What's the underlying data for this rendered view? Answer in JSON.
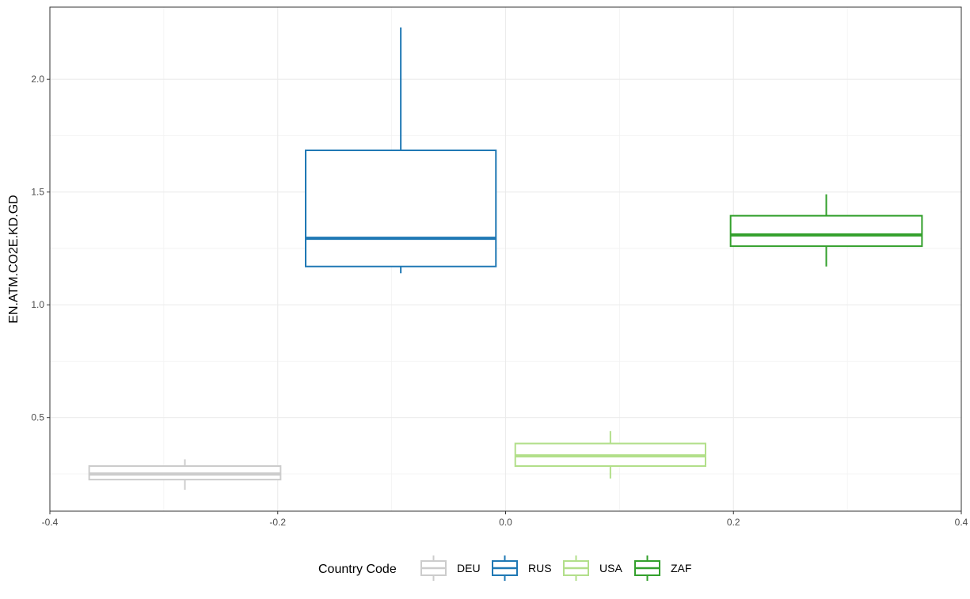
{
  "chart_data": {
    "type": "boxplot",
    "title": "",
    "xlabel": "",
    "ylabel": "EN.ATM.CO2E.KD.GD",
    "xlim": [
      -0.4,
      0.4
    ],
    "ylim": [
      0.085,
      2.32
    ],
    "x_ticks": [
      -0.4,
      -0.2,
      0.0,
      0.2,
      0.4
    ],
    "x_tick_labels": [
      "-0.4",
      "-0.2",
      "0.0",
      "0.2",
      "0.4"
    ],
    "y_ticks": [
      0.5,
      1.0,
      1.5,
      2.0
    ],
    "y_tick_labels": [
      "0.5",
      "1.0",
      "1.5",
      "2.0"
    ],
    "grid": true,
    "legend": {
      "title": "Country Code",
      "placement": "bottom",
      "entries": [
        "DEU",
        "RUS",
        "USA",
        "ZAF"
      ]
    },
    "series": [
      {
        "name": "DEU",
        "color": "#cccccc",
        "x_range": [
          -0.3655,
          -0.1975
        ],
        "whisker_low": 0.18,
        "q1": 0.225,
        "median": 0.25,
        "q3": 0.285,
        "whisker_high": 0.315
      },
      {
        "name": "RUS",
        "color": "#1f78b4",
        "x_range": [
          -0.1755,
          -0.0085
        ],
        "whisker_low": 1.14,
        "q1": 1.17,
        "median": 1.295,
        "q3": 1.685,
        "whisker_high": 2.23
      },
      {
        "name": "USA",
        "color": "#b2df8a",
        "x_range": [
          0.0085,
          0.1755
        ],
        "whisker_low": 0.23,
        "q1": 0.285,
        "median": 0.33,
        "q3": 0.385,
        "whisker_high": 0.44
      },
      {
        "name": "ZAF",
        "color": "#33a02c",
        "x_range": [
          0.1975,
          0.3655
        ],
        "whisker_low": 1.17,
        "q1": 1.26,
        "median": 1.31,
        "q3": 1.395,
        "whisker_high": 1.49
      }
    ]
  }
}
